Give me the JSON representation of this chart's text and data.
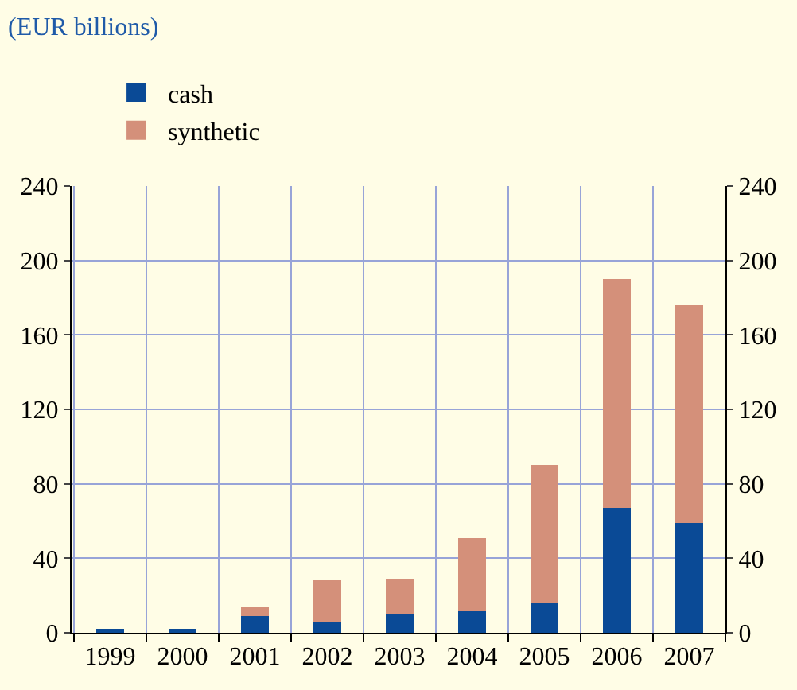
{
  "chart_data": {
    "type": "bar",
    "title": "(EUR billions)",
    "stacked": true,
    "categories": [
      "1999",
      "2000",
      "2001",
      "2002",
      "2003",
      "2004",
      "2005",
      "2006",
      "2007"
    ],
    "series": [
      {
        "name": "cash",
        "color": "#0a4a96",
        "values": [
          2,
          2,
          9,
          6,
          10,
          12,
          16,
          67,
          59
        ]
      },
      {
        "name": "synthetic",
        "color": "#d4907a",
        "values": [
          0,
          0,
          5,
          22,
          19,
          39,
          74,
          123,
          117
        ]
      }
    ],
    "ylim": [
      0,
      240
    ],
    "yticks": [
      0,
      40,
      80,
      120,
      160,
      200,
      240
    ],
    "y2lim": [
      0,
      240
    ],
    "y2ticks": [
      0,
      40,
      80,
      120,
      160,
      200,
      240
    ],
    "grid": true,
    "legend": "top left"
  }
}
